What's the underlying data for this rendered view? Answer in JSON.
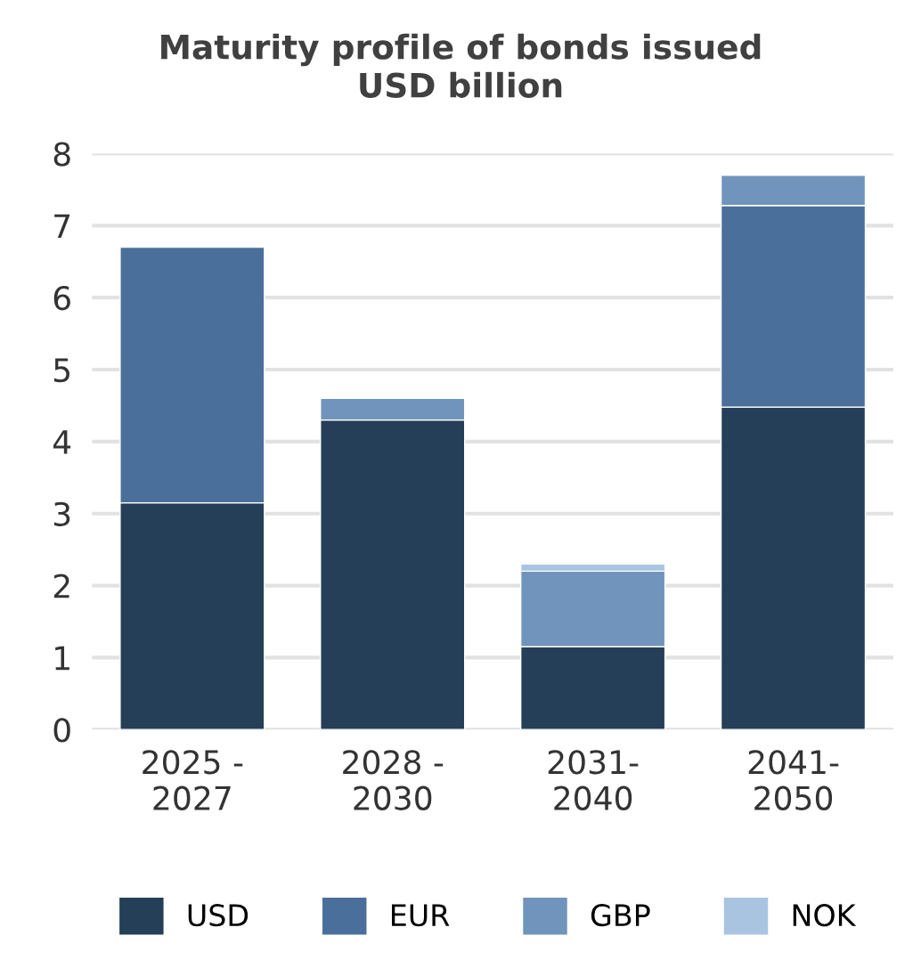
{
  "chart_data": {
    "type": "bar",
    "title": "Maturity profile of bonds issued",
    "subtitle": "USD billion",
    "categories": [
      "2025 -\n2027",
      "2028 -\n2030",
      "2031-\n2040",
      "2041-\n2050"
    ],
    "stacked": true,
    "series": [
      {
        "name": "USD",
        "color": "#243f57",
        "values": [
          3.15,
          4.3,
          1.15,
          4.48
        ]
      },
      {
        "name": "EUR",
        "color": "#4a6f9b",
        "values": [
          3.55,
          0,
          0,
          2.8
        ]
      },
      {
        "name": "GBP",
        "color": "#7094bb",
        "values": [
          0,
          0.3,
          1.05,
          0.42
        ]
      },
      {
        "name": "NOK",
        "color": "#a9c4e0",
        "values": [
          0,
          0,
          0.1,
          0
        ]
      }
    ],
    "ylim": [
      0,
      8
    ],
    "yticks": [
      0,
      1,
      2,
      3,
      4,
      5,
      6,
      7,
      8
    ],
    "grid": "y",
    "legend": "bottom"
  }
}
